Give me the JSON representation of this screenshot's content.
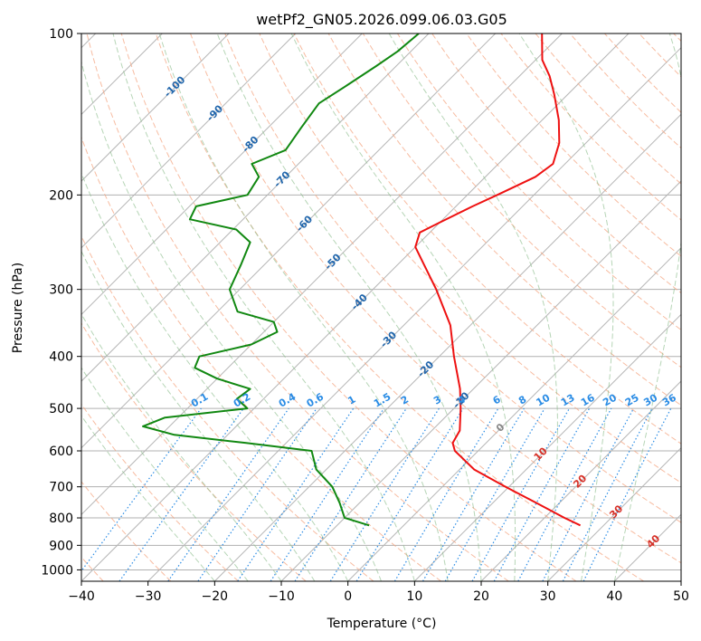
{
  "chart_data": {
    "type": "line",
    "chart_kind": "skew-T log-p diagram",
    "title": "wetPf2_GN05.2026.099.06.03.G05",
    "xlabel": "Temperature (°C)",
    "ylabel": "Pressure (hPa)",
    "xlim": [
      -40,
      50
    ],
    "ylim": [
      1050,
      100
    ],
    "x_ticks": [
      "−40",
      "−30",
      "−20",
      "−10",
      "0",
      "10",
      "20",
      "30",
      "40",
      "50"
    ],
    "x_tick_values": [
      -40,
      -30,
      -20,
      -10,
      0,
      10,
      20,
      30,
      40,
      50
    ],
    "y_ticks": [
      "100",
      "200",
      "300",
      "400",
      "500",
      "600",
      "700",
      "800",
      "900",
      "1000"
    ],
    "y_tick_values": [
      100,
      200,
      300,
      400,
      500,
      600,
      700,
      800,
      900,
      1000
    ],
    "series": [
      {
        "name": "Temperature",
        "color": "#ee1111",
        "points": [
          [
            826,
            26.5
          ],
          [
            800,
            23.0
          ],
          [
            750,
            16.5
          ],
          [
            700,
            9.5
          ],
          [
            650,
            2.2
          ],
          [
            600,
            -3.5
          ],
          [
            580,
            -5.0
          ],
          [
            550,
            -5.8
          ],
          [
            500,
            -9.0
          ],
          [
            460,
            -12.0
          ],
          [
            400,
            -17.8
          ],
          [
            350,
            -23.0
          ],
          [
            300,
            -30.5
          ],
          [
            270,
            -36.0
          ],
          [
            250,
            -40.0
          ],
          [
            235,
            -41.5
          ],
          [
            225,
            -40.0
          ],
          [
            210,
            -37.5
          ],
          [
            200,
            -35.5
          ],
          [
            185,
            -32.5
          ],
          [
            175,
            -31.8
          ],
          [
            160,
            -34.0
          ],
          [
            145,
            -37.5
          ],
          [
            130,
            -42.0
          ],
          [
            120,
            -45.5
          ],
          [
            112,
            -49.0
          ],
          [
            100,
            -53.0
          ]
        ]
      },
      {
        "name": "Dewpoint",
        "color": "#118811",
        "points": [
          [
            826,
            -5.2
          ],
          [
            800,
            -10.0
          ],
          [
            750,
            -13.0
          ],
          [
            700,
            -16.5
          ],
          [
            650,
            -21.5
          ],
          [
            600,
            -25.0
          ],
          [
            580,
            -36.0
          ],
          [
            560,
            -48.0
          ],
          [
            540,
            -54.0
          ],
          [
            520,
            -52.0
          ],
          [
            500,
            -41.0
          ],
          [
            480,
            -44.0
          ],
          [
            460,
            -43.5
          ],
          [
            440,
            -50.0
          ],
          [
            420,
            -55.0
          ],
          [
            400,
            -56.0
          ],
          [
            380,
            -50.0
          ],
          [
            360,
            -48.0
          ],
          [
            345,
            -50.0
          ],
          [
            330,
            -57.0
          ],
          [
            300,
            -61.5
          ],
          [
            270,
            -63.5
          ],
          [
            245,
            -65.5
          ],
          [
            232,
            -69.5
          ],
          [
            222,
            -78.0
          ],
          [
            210,
            -79.0
          ],
          [
            200,
            -73.0
          ],
          [
            185,
            -74.0
          ],
          [
            175,
            -77.0
          ],
          [
            165,
            -74.0
          ],
          [
            150,
            -75.0
          ],
          [
            135,
            -76.0
          ],
          [
            125,
            -74.5
          ],
          [
            115,
            -73.0
          ],
          [
            108,
            -72.0
          ],
          [
            100,
            -71.5
          ]
        ]
      }
    ],
    "dry_adiabats_color": "#f4a582",
    "moist_adiabats_color": "#8fbf8f",
    "mixing_ratio_color": "#2a8ce5",
    "isotherm_labels": [
      "-100",
      "-90",
      "-80",
      "-70",
      "-60",
      "-50",
      "-40",
      "-30",
      "-20",
      "-10",
      "0",
      "10",
      "20",
      "30",
      "40"
    ],
    "isotherm_values": [
      -100,
      -90,
      -80,
      -70,
      -60,
      -50,
      -40,
      -30,
      -20,
      -10,
      0,
      10,
      20,
      30,
      40
    ],
    "mixing_ratio_labels": [
      "0.1",
      "0.2",
      "0.4",
      "0.6",
      "1",
      "1.5",
      "2",
      "3",
      "4",
      "6",
      "8",
      "10",
      "13",
      "16",
      "20",
      "25",
      "30",
      "36"
    ],
    "mixing_ratio_values": [
      0.1,
      0.2,
      0.4,
      0.6,
      1,
      1.5,
      2,
      3,
      4,
      6,
      8,
      10,
      13,
      16,
      20,
      25,
      30,
      36
    ]
  }
}
